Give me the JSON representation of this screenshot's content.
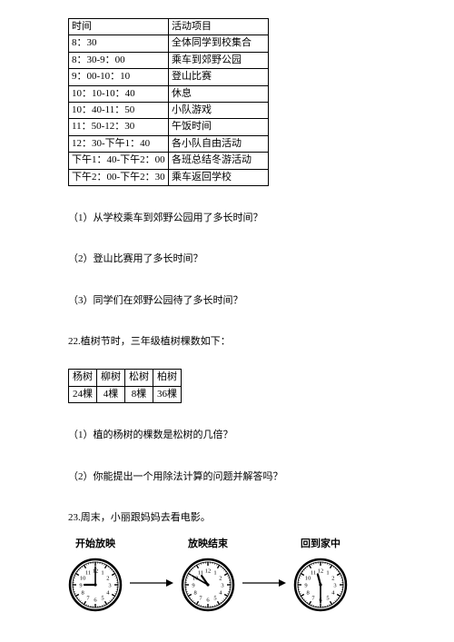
{
  "schedule": {
    "columns": [
      "时间",
      "活动项目"
    ],
    "rows": [
      [
        "8：30",
        "全体同学到校集合"
      ],
      [
        "8：30-9：00",
        "乘车到郊野公园"
      ],
      [
        "9：00-10：10",
        "登山比赛"
      ],
      [
        "10：10-10：40",
        "休息"
      ],
      [
        "10：40-11：50",
        "小队游戏"
      ],
      [
        "11：50-12：30",
        "午饭时间"
      ],
      [
        "12：30-下午1：40",
        "各小队自由活动"
      ],
      [
        "下午1：40-下午2：00",
        "各班总结冬游活动"
      ],
      [
        "下午2：00-下午2：30",
        "乘车返回学校"
      ]
    ]
  },
  "questions_a": {
    "q1": "（1）从学校乘车到郊野公园用了多长时间？",
    "q2": "（2）登山比赛用了多长时间？",
    "q3": "（3）同学们在郊野公园待了多长时间？"
  },
  "section22": "22.植树节时，三年级植树棵数如下：",
  "trees": {
    "columns": [
      "杨树",
      "柳树",
      "松树",
      "柏树"
    ],
    "values": [
      "24棵",
      "4棵",
      "8棵",
      "36棵"
    ]
  },
  "questions_b": {
    "q1": "（1）植的杨树的棵数是松树的几倍？",
    "q2": "（2）你能提出一个用除法计算的问题并解答吗？"
  },
  "section23": "23.周末，小丽跟妈妈去看电影。",
  "clocks": {
    "labels": [
      "开始放映",
      "放映结束",
      "回到家中"
    ],
    "times": [
      {
        "hour": 9,
        "minute": 0
      },
      {
        "hour": 10,
        "minute": 50
      },
      {
        "hour": 11,
        "minute": 30
      }
    ],
    "face_color": "#ffffff",
    "rim_color": "#000000",
    "hand_color": "#000000"
  }
}
